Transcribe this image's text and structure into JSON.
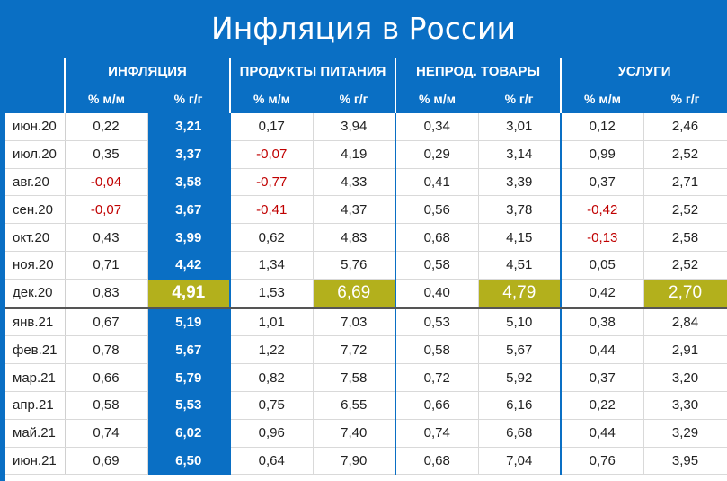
{
  "title": "Инфляция в России",
  "groups": [
    "ИНФЛЯЦИЯ",
    "ПРОДУКТЫ ПИТАНИЯ",
    "НЕПРОД. ТОВАРЫ",
    "УСЛУГИ"
  ],
  "subheaders": [
    "% м/м",
    "% г/г"
  ],
  "rows": [
    {
      "period": "июн.20",
      "values": [
        "0,22",
        "3,21",
        "0,17",
        "3,94",
        "0,34",
        "3,01",
        "0,12",
        "2,46"
      ]
    },
    {
      "period": "июл.20",
      "values": [
        "0,35",
        "3,37",
        "-0,07",
        "4,19",
        "0,29",
        "3,14",
        "0,99",
        "2,52"
      ]
    },
    {
      "period": "авг.20",
      "values": [
        "-0,04",
        "3,58",
        "-0,77",
        "4,33",
        "0,41",
        "3,39",
        "0,37",
        "2,71"
      ]
    },
    {
      "period": "сен.20",
      "values": [
        "-0,07",
        "3,67",
        "-0,41",
        "4,37",
        "0,56",
        "3,78",
        "-0,42",
        "2,52"
      ]
    },
    {
      "period": "окт.20",
      "values": [
        "0,43",
        "3,99",
        "0,62",
        "4,83",
        "0,68",
        "4,15",
        "-0,13",
        "2,58"
      ]
    },
    {
      "period": "ноя.20",
      "values": [
        "0,71",
        "4,42",
        "1,34",
        "5,76",
        "0,58",
        "4,51",
        "0,05",
        "2,52"
      ]
    },
    {
      "period": "дек.20",
      "values": [
        "0,83",
        "4,91",
        "1,53",
        "6,69",
        "0,40",
        "4,79",
        "0,42",
        "2,70"
      ]
    },
    {
      "period": "янв.21",
      "values": [
        "0,67",
        "5,19",
        "1,01",
        "7,03",
        "0,53",
        "5,10",
        "0,38",
        "2,84"
      ]
    },
    {
      "period": "фев.21",
      "values": [
        "0,78",
        "5,67",
        "1,22",
        "7,72",
        "0,58",
        "5,67",
        "0,44",
        "2,91"
      ]
    },
    {
      "period": "мар.21",
      "values": [
        "0,66",
        "5,79",
        "0,82",
        "7,58",
        "0,72",
        "5,92",
        "0,37",
        "3,20"
      ]
    },
    {
      "period": "апр.21",
      "values": [
        "0,58",
        "5,53",
        "0,75",
        "6,55",
        "0,66",
        "6,16",
        "0,22",
        "3,30"
      ]
    },
    {
      "period": "май.21",
      "values": [
        "0,74",
        "6,02",
        "0,96",
        "7,40",
        "0,74",
        "6,68",
        "0,44",
        "3,29"
      ]
    },
    {
      "period": "июн.21",
      "values": [
        "0,69",
        "6,50",
        "0,64",
        "7,90",
        "0,68",
        "7,04",
        "0,76",
        "3,95"
      ]
    }
  ],
  "highlighted_row": "дек.20",
  "colors": {
    "header": "#0a6fc4",
    "highlight": "#b3b01c",
    "negative": "#c00000"
  }
}
